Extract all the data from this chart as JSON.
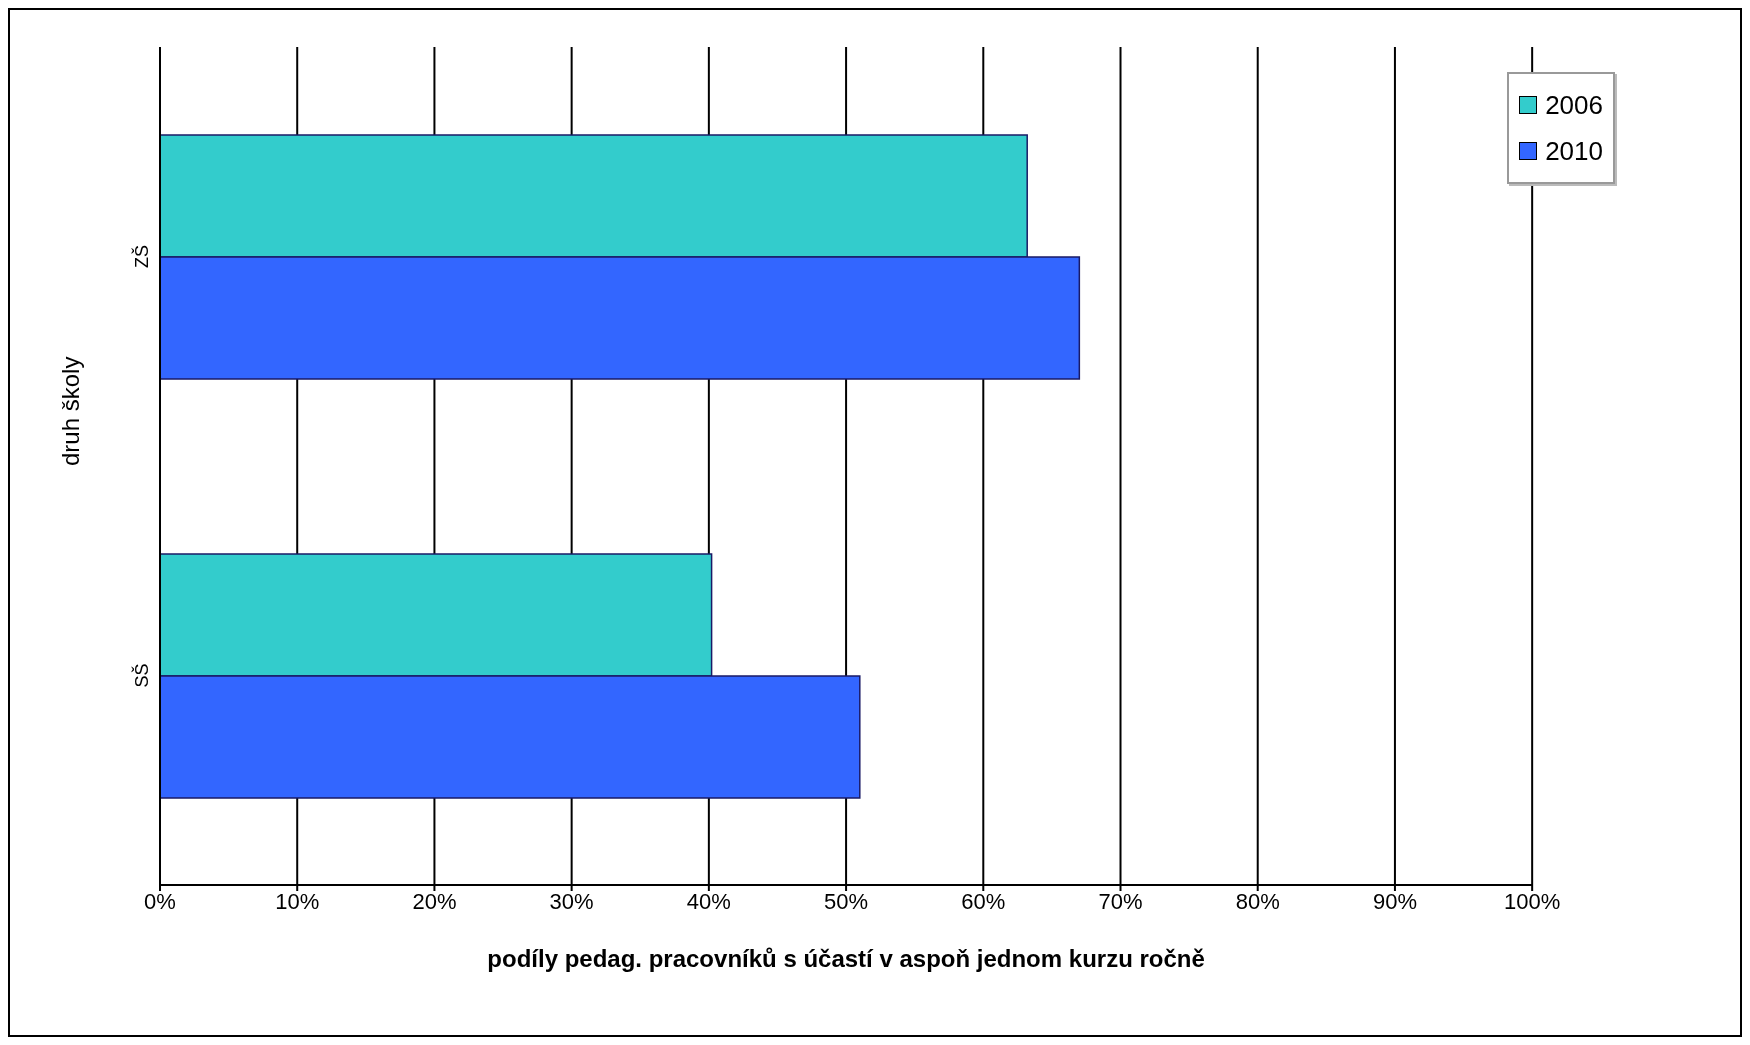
{
  "chart_data": {
    "type": "bar",
    "orientation": "horizontal",
    "xlabel": "podíly pedag. pracovníků s účastí v aspoň jednom kurzu ročně",
    "ylabel": "druh školy",
    "categories": [
      "ZŠ",
      "SŠ"
    ],
    "series": [
      {
        "name": "2006",
        "color": "#33cccc",
        "values": [
          63.2,
          40.2
        ]
      },
      {
        "name": "2010",
        "color": "#3366ff",
        "values": [
          67.0,
          51.0
        ]
      }
    ],
    "xlim": [
      0,
      100
    ],
    "xticks": [
      {
        "value": 0,
        "label": "0%"
      },
      {
        "value": 10,
        "label": "10%"
      },
      {
        "value": 20,
        "label": "20%"
      },
      {
        "value": 30,
        "label": "30%"
      },
      {
        "value": 40,
        "label": "40%"
      },
      {
        "value": 50,
        "label": "50%"
      },
      {
        "value": 60,
        "label": "60%"
      },
      {
        "value": 70,
        "label": "70%"
      },
      {
        "value": 80,
        "label": "80%"
      },
      {
        "value": 90,
        "label": "90%"
      },
      {
        "value": 100,
        "label": "100%"
      }
    ],
    "grid": "x",
    "legend": "top right"
  }
}
